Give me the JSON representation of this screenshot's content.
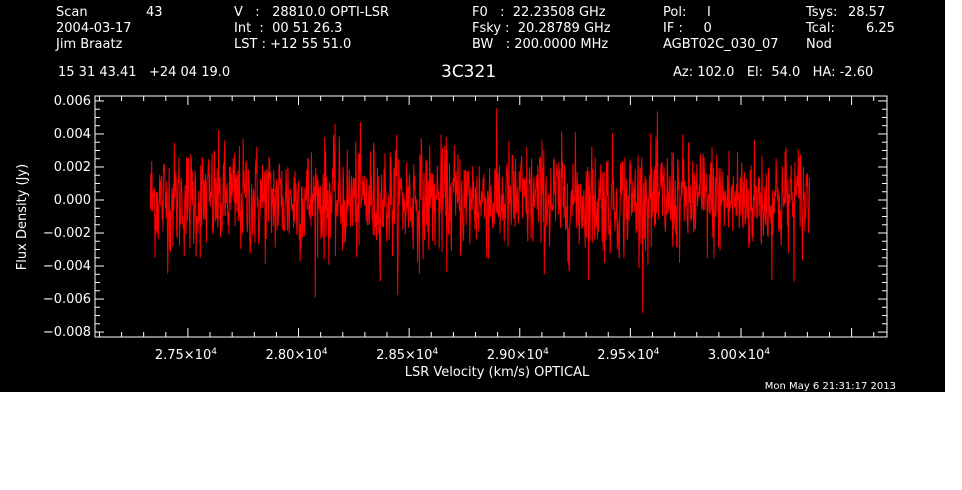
{
  "header": {
    "scan_label": "Scan",
    "scan_value": "43",
    "date": "2004-03-17",
    "observer": "Jim Braatz",
    "v_line": "V   :   28810.0 OPTI-LSR",
    "int_line": "Int  :  00 51 26.3",
    "lst_line": "LST : +12 55 51.0",
    "f0_line": "F0   :  22.23508 GHz",
    "fsky_line": "Fsky :  20.28789 GHz",
    "bw_line": "BW   : 200.0000 MHz",
    "pol_line": "Pol:     I",
    "if_line": "IF :     0",
    "project": "AGBT02C_030_07",
    "tsys_label": "Tsys:",
    "tsys_value": "28.57",
    "tcal_label": "Tcal:",
    "tcal_value": "6.25",
    "mode": "Nod",
    "coords": "15 31 43.41   +24 04 19.0",
    "source": "3C321",
    "az_el_ha": "Az: 102.0   El:  54.0   HA: -2.60",
    "timestamp": "Mon May  6 21:31:17 2013"
  },
  "colors": {
    "background": "#000000",
    "axes": "#ffffff",
    "trace": "#ff0000"
  },
  "chart_data": {
    "type": "line",
    "xlabel": "LSR Velocity (km/s) OPTICAL",
    "ylabel": "Flux Density (Jy)",
    "xlim": [
      27080,
      30660
    ],
    "ylim": [
      -0.0083,
      0.0063
    ],
    "x_ticks": [
      {
        "value": 27500,
        "mantissa": "2.75",
        "exp": "4"
      },
      {
        "value": 28000,
        "mantissa": "2.80",
        "exp": "4"
      },
      {
        "value": 28500,
        "mantissa": "2.85",
        "exp": "4"
      },
      {
        "value": 29000,
        "mantissa": "2.90",
        "exp": "4"
      },
      {
        "value": 29500,
        "mantissa": "2.95",
        "exp": "4"
      },
      {
        "value": 30000,
        "mantissa": "3.00",
        "exp": "4"
      }
    ],
    "y_ticks": [
      {
        "value": 0.006,
        "label": "0.006"
      },
      {
        "value": 0.004,
        "label": "0.004"
      },
      {
        "value": 0.002,
        "label": "0.002"
      },
      {
        "value": 0.0,
        "label": "0.000"
      },
      {
        "value": -0.002,
        "label": "−0.002"
      },
      {
        "value": -0.004,
        "label": "−0.004"
      },
      {
        "value": -0.006,
        "label": "−0.006"
      },
      {
        "value": -0.008,
        "label": "−0.008"
      }
    ],
    "series": [
      {
        "color": "#ff0000",
        "x_start": 27330,
        "x_end": 30310,
        "points": 1400,
        "mean": 0.0,
        "rms": 0.0017
      }
    ]
  }
}
